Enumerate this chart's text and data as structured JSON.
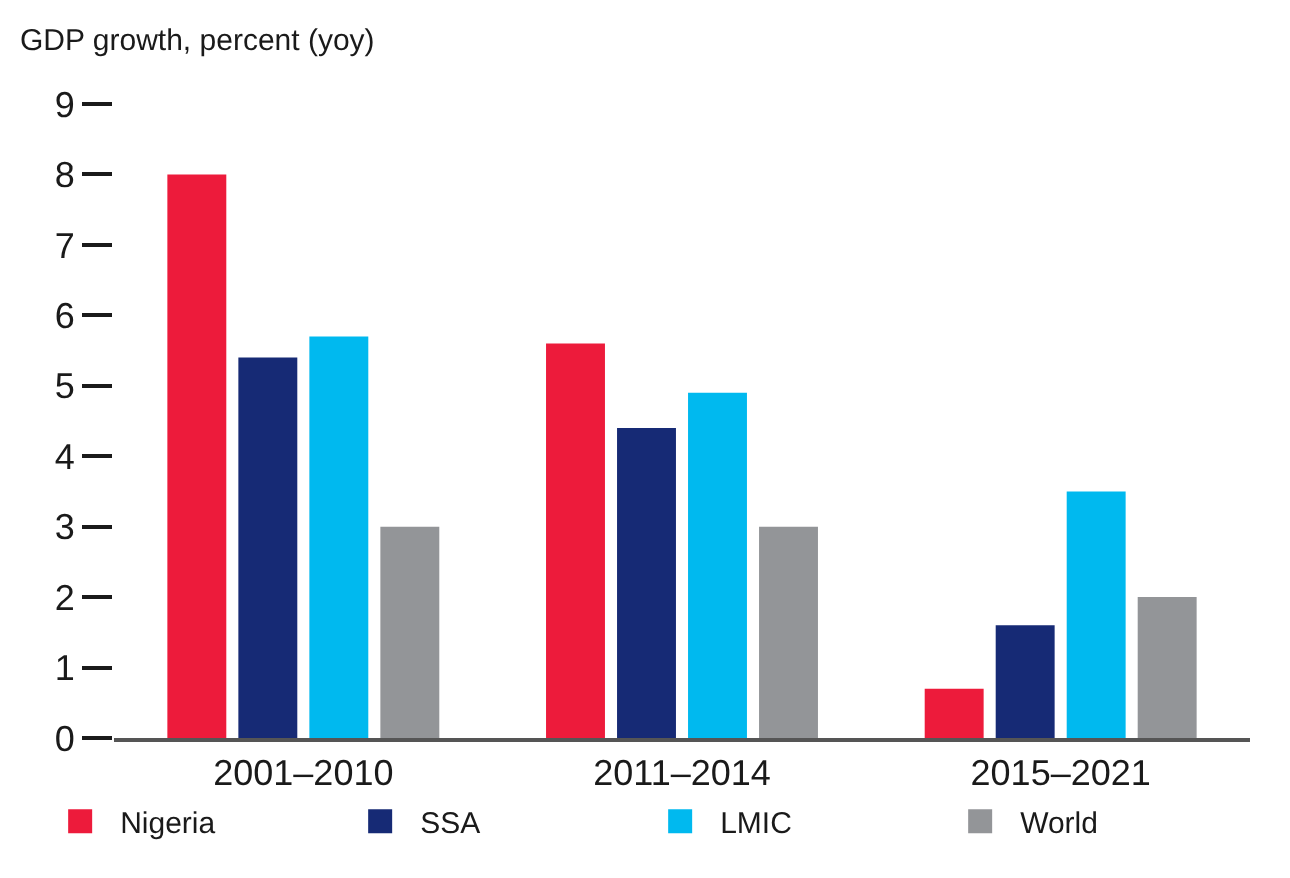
{
  "chart_data": {
    "type": "bar",
    "ylabel": "GDP growth, percent (yoy)",
    "categories": [
      "2001–2010",
      "2011–2014",
      "2015–2021"
    ],
    "series": [
      {
        "name": "Nigeria",
        "color": "#ed1b3b",
        "values": [
          8.0,
          5.6,
          0.7
        ]
      },
      {
        "name": "SSA",
        "color": "#162a75",
        "values": [
          5.4,
          4.4,
          1.6
        ]
      },
      {
        "name": "LMIC",
        "color": "#00b9ef",
        "values": [
          5.7,
          4.9,
          3.5
        ]
      },
      {
        "name": "World",
        "color": "#939598",
        "values": [
          3.0,
          3.0,
          2.0
        ]
      }
    ],
    "ylim": [
      0,
      9
    ],
    "yticks": [
      0,
      1,
      2,
      3,
      4,
      5,
      6,
      7,
      8,
      9
    ],
    "grid": false,
    "legend": "bottom"
  }
}
